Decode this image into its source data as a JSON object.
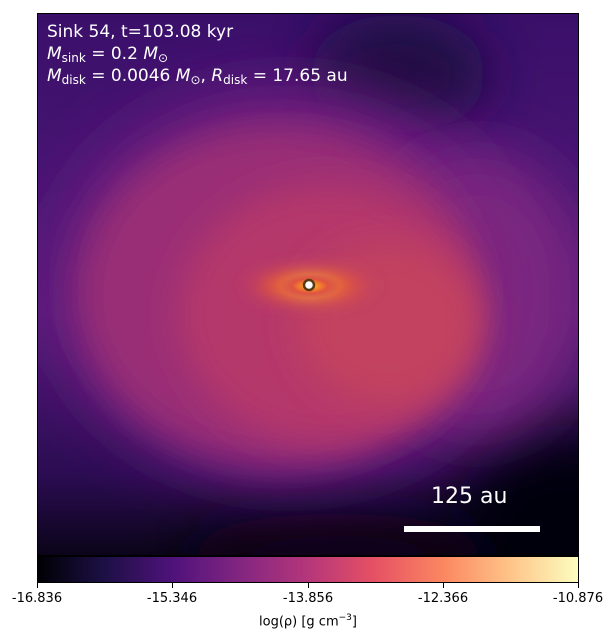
{
  "annotation": {
    "line1": "Sink 54, t=103.08 kyr",
    "msink_symbol": "M",
    "msink_sub": "sink",
    "msink_value": " = 0.2 ",
    "msink_unit": "M",
    "msink_unit_sub": "⊙",
    "mdisk_symbol": "M",
    "mdisk_sub": "disk",
    "mdisk_value": " = 0.0046 ",
    "mdisk_unit": "M",
    "mdisk_unit_sub": "⊙",
    "sep": ", ",
    "rdisk_symbol": "R",
    "rdisk_sub": "disk",
    "rdisk_value": " = 17.65 au"
  },
  "scale_bar": {
    "label": "125 au"
  },
  "colorbar": {
    "colormap": "magma",
    "ticks": [
      "-16.836",
      "-15.346",
      "-13.856",
      "-12.366",
      "-10.876"
    ],
    "label_prefix": "log(ρ) [g cm",
    "label_exp": "−3",
    "label_suffix": "]"
  },
  "colors": {
    "background_dark": "#2a0a52",
    "envelope": "#b5376b",
    "core": "#f2701d",
    "sink_marker_fill": "#ffffff",
    "sink_marker_edge": "#5a3a10"
  }
}
